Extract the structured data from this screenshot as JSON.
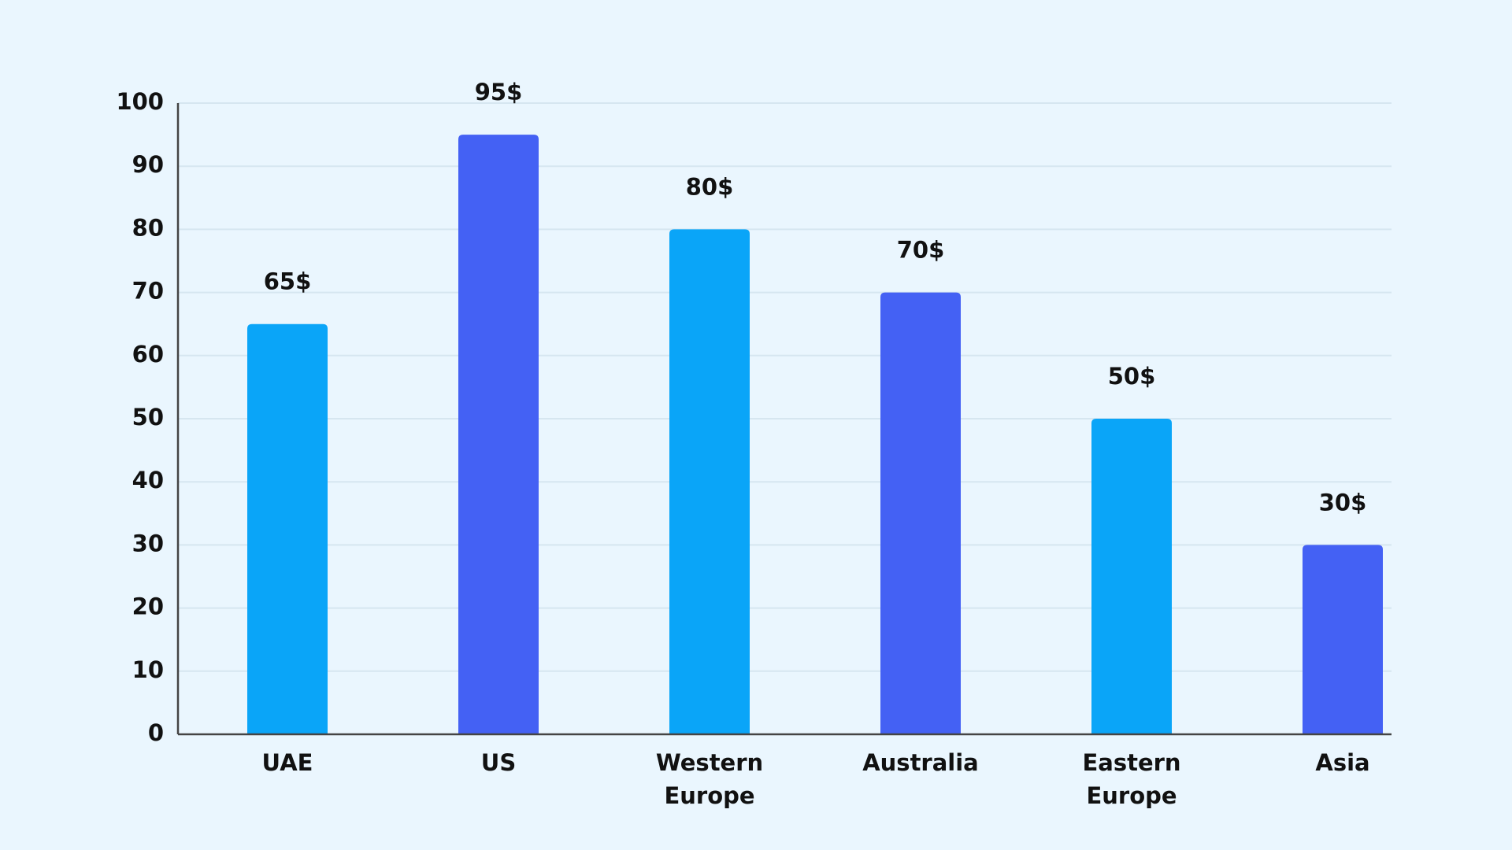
{
  "chart_data": {
    "type": "bar",
    "categories": [
      "UAE",
      "US",
      "Western Europe",
      "Australia",
      "Eastern Europe",
      "Asia"
    ],
    "values": [
      65,
      95,
      80,
      70,
      50,
      30
    ],
    "value_labels": [
      "65$",
      "95$",
      "80$",
      "70$",
      "50$",
      "30$"
    ],
    "colors": [
      "#0aa5f8",
      "#4461f4",
      "#0aa5f8",
      "#4461f4",
      "#0aa5f8",
      "#4461f4"
    ],
    "ylim": [
      0,
      100
    ],
    "yticks": [
      0,
      10,
      20,
      30,
      40,
      50,
      60,
      70,
      80,
      90,
      100
    ],
    "grid": true
  }
}
